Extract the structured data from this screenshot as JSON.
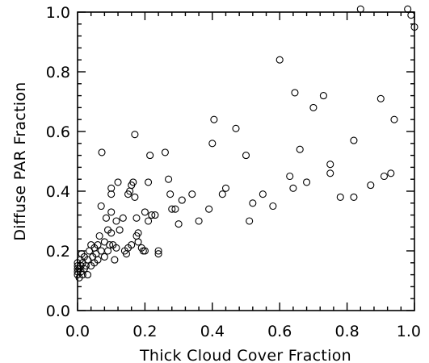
{
  "chart_data": {
    "type": "scatter",
    "title": "",
    "xlabel": "Thick Cloud Cover Fraction",
    "ylabel": "Diffuse PAR Fraction",
    "xlim": [
      0,
      1
    ],
    "ylim": [
      0,
      1
    ],
    "xticks": [
      "0.0",
      "0.2",
      "0.4",
      "0.6",
      "0.8",
      "1.0"
    ],
    "yticks": [
      "0.0",
      "0.2",
      "0.4",
      "0.6",
      "0.8",
      "1.0"
    ],
    "grid": false,
    "legend": "none",
    "marker": "open-circle",
    "points": [
      [
        0.0,
        0.12
      ],
      [
        0.0,
        0.13
      ],
      [
        0.0,
        0.14
      ],
      [
        0.0,
        0.15
      ],
      [
        0.0,
        0.16
      ],
      [
        0.005,
        0.11
      ],
      [
        0.005,
        0.14
      ],
      [
        0.008,
        0.17
      ],
      [
        0.01,
        0.13
      ],
      [
        0.01,
        0.15
      ],
      [
        0.012,
        0.19
      ],
      [
        0.015,
        0.12
      ],
      [
        0.015,
        0.16
      ],
      [
        0.02,
        0.14
      ],
      [
        0.02,
        0.18
      ],
      [
        0.025,
        0.15
      ],
      [
        0.03,
        0.12
      ],
      [
        0.03,
        0.17
      ],
      [
        0.035,
        0.2
      ],
      [
        0.04,
        0.15
      ],
      [
        0.04,
        0.22
      ],
      [
        0.045,
        0.18
      ],
      [
        0.05,
        0.16
      ],
      [
        0.05,
        0.21
      ],
      [
        0.055,
        0.19
      ],
      [
        0.06,
        0.22
      ],
      [
        0.06,
        0.17
      ],
      [
        0.065,
        0.25
      ],
      [
        0.07,
        0.2
      ],
      [
        0.07,
        0.35
      ],
      [
        0.072,
        0.53
      ],
      [
        0.08,
        0.18
      ],
      [
        0.08,
        0.23
      ],
      [
        0.085,
        0.31
      ],
      [
        0.09,
        0.2
      ],
      [
        0.09,
        0.27
      ],
      [
        0.095,
        0.22
      ],
      [
        0.1,
        0.26
      ],
      [
        0.1,
        0.33
      ],
      [
        0.1,
        0.39
      ],
      [
        0.1,
        0.41
      ],
      [
        0.105,
        0.22
      ],
      [
        0.11,
        0.17
      ],
      [
        0.115,
        0.21
      ],
      [
        0.115,
        0.3
      ],
      [
        0.12,
        0.43
      ],
      [
        0.125,
        0.27
      ],
      [
        0.135,
        0.31
      ],
      [
        0.14,
        0.2
      ],
      [
        0.145,
        0.19
      ],
      [
        0.15,
        0.21
      ],
      [
        0.15,
        0.39
      ],
      [
        0.155,
        0.4
      ],
      [
        0.16,
        0.22
      ],
      [
        0.16,
        0.42
      ],
      [
        0.165,
        0.43
      ],
      [
        0.17,
        0.59
      ],
      [
        0.17,
        0.38
      ],
      [
        0.175,
        0.25
      ],
      [
        0.175,
        0.31
      ],
      [
        0.18,
        0.23
      ],
      [
        0.18,
        0.26
      ],
      [
        0.19,
        0.21
      ],
      [
        0.195,
        0.2
      ],
      [
        0.2,
        0.33
      ],
      [
        0.2,
        0.2
      ],
      [
        0.21,
        0.3
      ],
      [
        0.21,
        0.43
      ],
      [
        0.215,
        0.52
      ],
      [
        0.22,
        0.32
      ],
      [
        0.23,
        0.32
      ],
      [
        0.24,
        0.19
      ],
      [
        0.24,
        0.2
      ],
      [
        0.26,
        0.53
      ],
      [
        0.27,
        0.44
      ],
      [
        0.275,
        0.39
      ],
      [
        0.28,
        0.34
      ],
      [
        0.29,
        0.34
      ],
      [
        0.3,
        0.29
      ],
      [
        0.31,
        0.37
      ],
      [
        0.34,
        0.39
      ],
      [
        0.36,
        0.3
      ],
      [
        0.39,
        0.34
      ],
      [
        0.4,
        0.56
      ],
      [
        0.405,
        0.64
      ],
      [
        0.43,
        0.39
      ],
      [
        0.44,
        0.41
      ],
      [
        0.47,
        0.61
      ],
      [
        0.5,
        0.52
      ],
      [
        0.51,
        0.3
      ],
      [
        0.52,
        0.36
      ],
      [
        0.55,
        0.39
      ],
      [
        0.58,
        0.35
      ],
      [
        0.6,
        0.84
      ],
      [
        0.63,
        0.45
      ],
      [
        0.64,
        0.41
      ],
      [
        0.645,
        0.73
      ],
      [
        0.66,
        0.54
      ],
      [
        0.68,
        0.43
      ],
      [
        0.7,
        0.68
      ],
      [
        0.73,
        0.72
      ],
      [
        0.75,
        0.49
      ],
      [
        0.75,
        0.46
      ],
      [
        0.78,
        0.38
      ],
      [
        0.82,
        0.38
      ],
      [
        0.82,
        0.57
      ],
      [
        0.84,
        1.01
      ],
      [
        0.87,
        0.42
      ],
      [
        0.9,
        0.71
      ],
      [
        0.91,
        0.45
      ],
      [
        0.93,
        0.46
      ],
      [
        0.94,
        0.64
      ],
      [
        0.98,
        1.01
      ],
      [
        0.99,
        0.99
      ],
      [
        1.0,
        0.95
      ]
    ]
  }
}
